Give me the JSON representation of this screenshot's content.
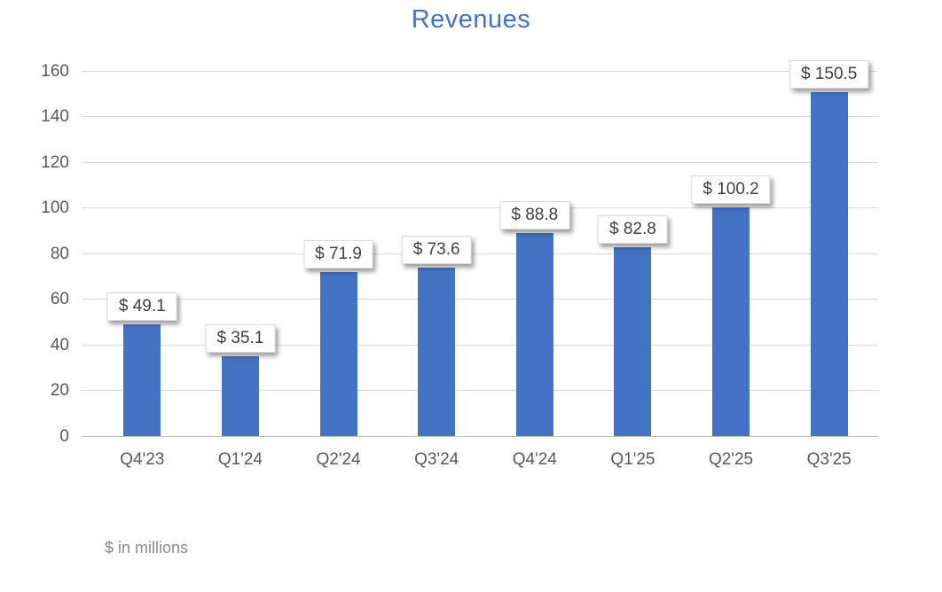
{
  "chart": {
    "title": "Revenues",
    "footnote": "$ in millions",
    "colors": {
      "bar": "#4472C4",
      "title_text": "#4472C4",
      "axis_text": "#595959",
      "gridline": "#D9D9D9",
      "axis_line": "#BFBFBF",
      "data_label_text": "#3F3F3F",
      "footnote_text": "#8A8A8A",
      "background": "#FFFFFF"
    }
  },
  "chart_data": {
    "type": "bar",
    "title": "Revenues",
    "categories": [
      "Q4'23",
      "Q1'24",
      "Q2'24",
      "Q3'24",
      "Q4'24",
      "Q1'25",
      "Q2'25",
      "Q3'25"
    ],
    "values": [
      49.1,
      35.1,
      71.9,
      73.6,
      88.8,
      82.8,
      100.2,
      150.5
    ],
    "data_labels": [
      "$ 49.1",
      "$ 35.1",
      "$ 71.9",
      "$ 73.6",
      "$ 88.8",
      "$ 82.8",
      "$ 100.2",
      "$ 150.5"
    ],
    "xlabel": "",
    "ylabel": "",
    "ylim": [
      0,
      160
    ],
    "yticks": [
      0,
      20,
      40,
      60,
      80,
      100,
      120,
      140,
      160
    ],
    "grid": true,
    "legend": false,
    "data_label_format": "$ 0.0",
    "footnote": "$ in millions"
  }
}
